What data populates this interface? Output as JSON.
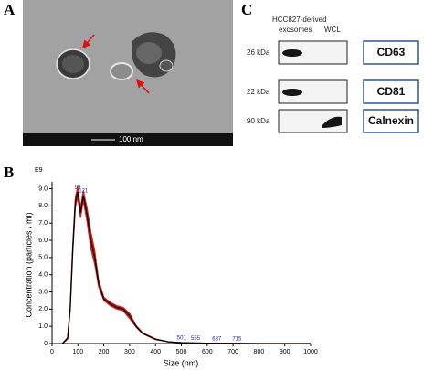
{
  "panel_labels": [
    "A",
    "B",
    "C"
  ],
  "panel_a": {
    "scale_bar": "100 nm"
  },
  "panel_c": {
    "header": [
      "HCC827-derived",
      "exosomes",
      "WCL"
    ],
    "rows": [
      {
        "weight": "26 kDa",
        "marker": "CD63"
      },
      {
        "weight": "22 kDa",
        "marker": "CD81"
      },
      {
        "weight": "90 kDa",
        "marker": "Calnexin"
      }
    ]
  },
  "chart_data": {
    "type": "line",
    "multiplier": "E9",
    "y_label": "Concentration (particles / ml)",
    "x_label": "Size (nm)",
    "x": [
      40,
      60,
      70,
      80,
      90,
      99,
      110,
      121,
      135,
      150,
      165,
      180,
      200,
      225,
      250,
      275,
      300,
      325,
      350,
      400,
      450,
      500,
      550,
      600,
      700,
      800,
      1000
    ],
    "values": [
      0,
      0.3,
      2,
      5.5,
      8.2,
      8.8,
      7.6,
      8.6,
      7.5,
      6.0,
      5.0,
      3.5,
      2.6,
      2.3,
      2.1,
      2.0,
      1.6,
      1.0,
      0.6,
      0.25,
      0.1,
      0.05,
      0.03,
      0.02,
      0.01,
      0,
      0
    ],
    "errors": [
      0,
      0.05,
      0.1,
      0.2,
      0.3,
      0.3,
      0.3,
      0.3,
      0.4,
      0.5,
      0.4,
      0.2,
      0.1,
      0.1,
      0.1,
      0.1,
      0.15,
      0.05,
      0.03,
      0.02,
      0,
      0,
      0,
      0,
      0,
      0,
      0
    ],
    "color": "#000000",
    "error_color": "#d0231e",
    "peaks": [
      99,
      121,
      501,
      555,
      637,
      715
    ],
    "peak_color": "#2a2aa8",
    "xlim": [
      0,
      1000
    ],
    "ylim": [
      0,
      9.4
    ],
    "xticks": [
      0,
      100,
      200,
      300,
      400,
      500,
      600,
      700,
      800,
      900,
      1000
    ],
    "yticks": [
      0,
      {
        "value": 1,
        "label": "1.0"
      },
      {
        "value": 2,
        "label": "2.0"
      },
      {
        "value": 3,
        "label": "3.0"
      },
      {
        "value": 4,
        "label": "4.0"
      },
      {
        "value": 5,
        "label": "5.0"
      },
      {
        "value": 6,
        "label": "6.0"
      },
      {
        "value": 7,
        "label": "7.0"
      },
      {
        "value": 8,
        "label": "8.0"
      },
      {
        "value": 9,
        "label": "9.0"
      }
    ]
  }
}
